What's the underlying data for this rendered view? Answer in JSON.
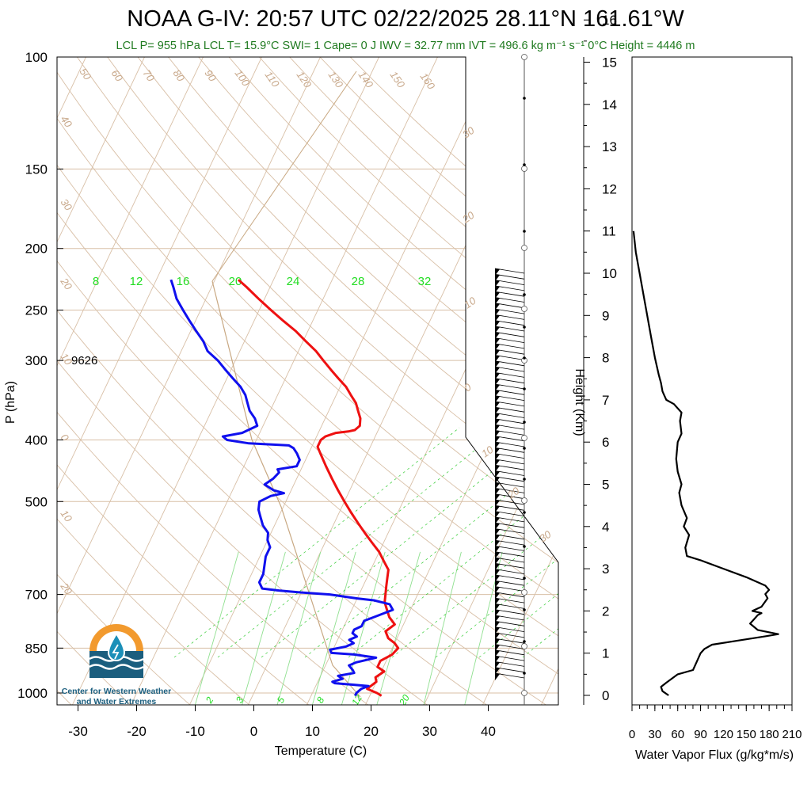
{
  "title": "NOAA G-IV: 20:57 UTC 02/22/2025  28.11°N 161.61°W",
  "subtitle": "LCL P= 955 hPa  LCL T= 15.9°C  SWI= 1  Cape= 0 J  IWV = 32.77 mm  IVT = 496.6 kg m⁻¹ s⁻¹  0°C Height = 4446 m",
  "logo": {
    "line1": "Center for Western Weather",
    "line2": "and Water Extremes"
  },
  "colors": {
    "temperature": "#ee1111",
    "dewpoint": "#1010ee",
    "isotherm": "#d8bfa6",
    "mixing_ratio": "#22cc22",
    "title_green": "#1f7a1f"
  },
  "chart_data": [
    {
      "type": "line",
      "name": "skew-t",
      "xlabel": "Temperature (C)",
      "ylabel": "P (hPa)",
      "xlim": [
        -34,
        50
      ],
      "ylim": [
        1050,
        100
      ],
      "y_scale": "log",
      "x_ticks": [
        -30,
        -20,
        -10,
        0,
        10,
        20,
        30,
        40
      ],
      "y_ticks": [
        100,
        150,
        200,
        250,
        300,
        400,
        500,
        700,
        850,
        1000
      ],
      "annotations": [
        "9626"
      ],
      "isotherm_labels": [
        "50",
        "60",
        "70",
        "80",
        "90",
        "100",
        "110",
        "120",
        "130",
        "140",
        "150",
        "160",
        "40",
        "30",
        "20",
        "10",
        "0",
        "10",
        "20",
        "30",
        "20",
        "10",
        "0",
        "10",
        "20",
        "30"
      ],
      "mixing_ratio_labels": [
        "8",
        "12",
        "16",
        "20",
        "24",
        "28",
        "32"
      ],
      "mixing_ratio_labels_low": [
        "2",
        "3",
        "5",
        "8",
        "12",
        "20"
      ],
      "series": [
        {
          "name": "temperature",
          "points": [
            [
              22,
              1010
            ],
            [
              21,
              1000
            ],
            [
              19,
              985
            ],
            [
              20,
              960
            ],
            [
              19.5,
              945
            ],
            [
              20.5,
              925
            ],
            [
              19,
              910
            ],
            [
              19,
              890
            ],
            [
              20.5,
              870
            ],
            [
              21,
              850
            ],
            [
              20,
              835
            ],
            [
              18.5,
              820
            ],
            [
              17.5,
              800
            ],
            [
              18.5,
              780
            ],
            [
              17,
              760
            ],
            [
              16,
              740
            ],
            [
              15,
              720
            ],
            [
              14.5,
              700
            ],
            [
              14,
              680
            ],
            [
              13.5,
              660
            ],
            [
              13,
              640
            ],
            [
              11.5,
              620
            ],
            [
              10,
              600
            ],
            [
              8,
              580
            ],
            [
              6,
              560
            ],
            [
              4,
              540
            ],
            [
              2,
              520
            ],
            [
              0,
              500
            ],
            [
              -2,
              480
            ],
            [
              -4,
              460
            ],
            [
              -6,
              440
            ],
            [
              -8,
              420
            ],
            [
              -9,
              410
            ],
            [
              -9,
              400
            ],
            [
              -8.5,
              395
            ],
            [
              -7,
              390
            ],
            [
              -5,
              388
            ],
            [
              -4,
              386
            ],
            [
              -3.5,
              380
            ],
            [
              -4,
              370
            ],
            [
              -5,
              360
            ],
            [
              -6,
              350
            ],
            [
              -7.5,
              340
            ],
            [
              -9,
              330
            ],
            [
              -11,
              320
            ],
            [
              -13,
              310
            ],
            [
              -15,
              300
            ],
            [
              -17,
              290
            ],
            [
              -19.5,
              280
            ],
            [
              -22,
              270
            ],
            [
              -25,
              260
            ],
            [
              -28,
              250
            ],
            [
              -31,
              240
            ],
            [
              -34,
              230
            ],
            [
              -36,
              224
            ]
          ]
        },
        {
          "name": "dewpoint",
          "points": [
            [
              17.5,
              1010
            ],
            [
              17.5,
              1000
            ],
            [
              18,
              985
            ],
            [
              19,
              975
            ],
            [
              16,
              970
            ],
            [
              13,
              965
            ],
            [
              12.5,
              960
            ],
            [
              14,
              950
            ],
            [
              13,
              940
            ],
            [
              15.5,
              930
            ],
            [
              15,
              920
            ],
            [
              14,
              905
            ],
            [
              15,
              895
            ],
            [
              18,
              880
            ],
            [
              14,
              870
            ],
            [
              10,
              865
            ],
            [
              9.5,
              855
            ],
            [
              12,
              845
            ],
            [
              13,
              835
            ],
            [
              12,
              825
            ],
            [
              13,
              815
            ],
            [
              12,
              805
            ],
            [
              12,
              795
            ],
            [
              13,
              785
            ],
            [
              13,
              770
            ],
            [
              15,
              755
            ],
            [
              17,
              740
            ],
            [
              16,
              725
            ],
            [
              13,
              715
            ],
            [
              10,
              710
            ],
            [
              5,
              700
            ],
            [
              0,
              695
            ],
            [
              -4,
              690
            ],
            [
              -7,
              685
            ],
            [
              -8,
              670
            ],
            [
              -8,
              650
            ],
            [
              -8.5,
              630
            ],
            [
              -9,
              610
            ],
            [
              -9,
              590
            ],
            [
              -10,
              575
            ],
            [
              -10.5,
              560
            ],
            [
              -12,
              545
            ],
            [
              -13,
              530
            ],
            [
              -14,
              515
            ],
            [
              -14.5,
              500
            ],
            [
              -13,
              490
            ],
            [
              -11,
              485
            ],
            [
              -13,
              480
            ],
            [
              -15,
              470
            ],
            [
              -14,
              460
            ],
            [
              -13.5,
              450
            ],
            [
              -14,
              445
            ],
            [
              -11,
              440
            ],
            [
              -11,
              430
            ],
            [
              -12,
              420
            ],
            [
              -13,
              412
            ],
            [
              -14,
              408
            ],
            [
              -21,
              405
            ],
            [
              -25,
              400
            ],
            [
              -26,
              395
            ],
            [
              -23,
              390
            ],
            [
              -22,
              385
            ],
            [
              -21,
              380
            ],
            [
              -22,
              370
            ],
            [
              -23.5,
              360
            ],
            [
              -24.5,
              350
            ],
            [
              -25.5,
              340
            ],
            [
              -27,
              330
            ],
            [
              -29,
              320
            ],
            [
              -31,
              310
            ],
            [
              -33,
              300
            ],
            [
              -35.5,
              290
            ],
            [
              -37,
              280
            ],
            [
              -39,
              270
            ],
            [
              -41,
              260
            ],
            [
              -43,
              250
            ],
            [
              -45,
              240
            ],
            [
              -46.5,
              230
            ],
            [
              -47.5,
              224
            ]
          ]
        }
      ]
    },
    {
      "type": "line",
      "name": "water-vapor-flux",
      "xlabel": "Water Vapor Flux (g/kg*m/s)",
      "ylabel": "Height (Km)",
      "xlim": [
        0,
        210
      ],
      "ylim": [
        -0.3,
        16.4
      ],
      "x_ticks": [
        0,
        30,
        60,
        90,
        120,
        150,
        180,
        210
      ],
      "y_ticks": [
        0,
        1,
        2,
        3,
        4,
        5,
        6,
        7,
        8,
        9,
        10,
        11,
        12,
        13,
        14,
        15,
        16
      ],
      "series": [
        {
          "name": "flux",
          "points": [
            [
              48,
              0
            ],
            [
              40,
              0.1
            ],
            [
              38,
              0.2
            ],
            [
              45,
              0.3
            ],
            [
              60,
              0.5
            ],
            [
              80,
              0.6
            ],
            [
              85,
              0.8
            ],
            [
              90,
              1.0
            ],
            [
              95,
              1.1
            ],
            [
              105,
              1.2
            ],
            [
              140,
              1.3
            ],
            [
              175,
              1.4
            ],
            [
              192,
              1.45
            ],
            [
              165,
              1.55
            ],
            [
              155,
              1.7
            ],
            [
              160,
              1.8
            ],
            [
              165,
              1.9
            ],
            [
              170,
              1.95
            ],
            [
              158,
              2.0
            ],
            [
              170,
              2.1
            ],
            [
              178,
              2.3
            ],
            [
              175,
              2.4
            ],
            [
              180,
              2.5
            ],
            [
              175,
              2.6
            ],
            [
              150,
              2.8
            ],
            [
              120,
              3.0
            ],
            [
              90,
              3.2
            ],
            [
              72,
              3.3
            ],
            [
              70,
              3.5
            ],
            [
              75,
              3.8
            ],
            [
              68,
              4.0
            ],
            [
              72,
              4.2
            ],
            [
              65,
              4.5
            ],
            [
              62,
              4.8
            ],
            [
              65,
              5.0
            ],
            [
              60,
              5.3
            ],
            [
              58,
              5.6
            ],
            [
              60,
              6.0
            ],
            [
              65,
              6.2
            ],
            [
              63,
              6.5
            ],
            [
              65,
              6.7
            ],
            [
              55,
              6.9
            ],
            [
              45,
              7.0
            ],
            [
              40,
              7.2
            ],
            [
              38,
              7.4
            ],
            [
              35,
              7.6
            ],
            [
              30,
              8.0
            ],
            [
              25,
              8.5
            ],
            [
              20,
              9.0
            ],
            [
              15,
              9.5
            ],
            [
              10,
              10.0
            ],
            [
              5,
              10.5
            ],
            [
              2,
              11.0
            ]
          ]
        }
      ]
    }
  ]
}
